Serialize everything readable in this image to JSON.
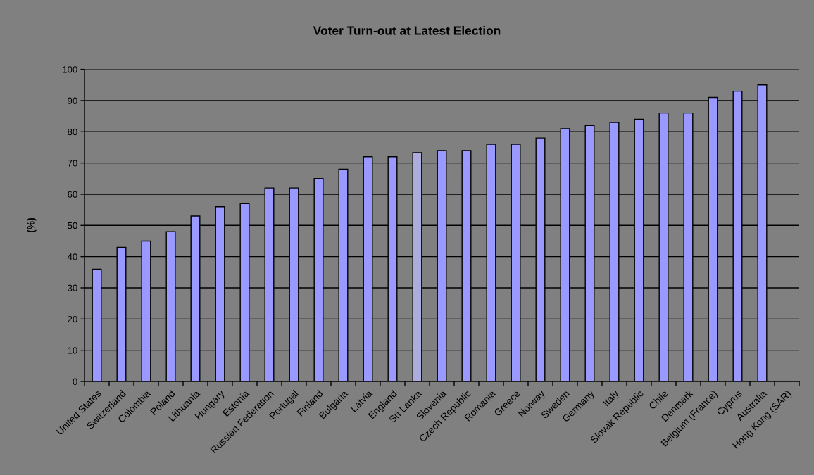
{
  "chart_data": {
    "type": "bar",
    "title": "Voter Turn-out at Latest Election",
    "ylabel": "(%)",
    "categories": [
      "United States",
      "Switzerland",
      "Colombia",
      "Poland",
      "Lithuania",
      "Hungary",
      "Estonia",
      "Russian Federation",
      "Portugal",
      "Finland",
      "Bulgaria",
      "Latvia",
      "England",
      "Sri Lanka",
      "Slovenia",
      "Czech Republic",
      "Romania",
      "Greece",
      "Norway",
      "Sweden",
      "Germany",
      "Italy",
      "Slovak Republic",
      "Chile",
      "Denmark",
      "Belgium (France)",
      "Cyprus",
      "Australia",
      "Hong Kong (SAR)"
    ],
    "values": [
      36,
      43,
      45,
      48,
      53,
      56,
      57,
      62,
      62,
      65,
      68,
      72,
      72,
      73.3,
      74,
      74,
      76,
      76,
      78,
      81,
      82,
      83,
      84,
      86,
      86,
      91,
      93,
      95,
      null
    ],
    "colors": [
      "#9999ff",
      "#9999ff",
      "#9999ff",
      "#9999ff",
      "#9999ff",
      "#9999ff",
      "#9999ff",
      "#9999ff",
      "#9999ff",
      "#9999ff",
      "#9999ff",
      "#9999ff",
      "#9999ff",
      "#acacdf",
      "#9999ff",
      "#9999ff",
      "#9999ff",
      "#9999ff",
      "#9999ff",
      "#9999ff",
      "#9999ff",
      "#9999ff",
      "#9999ff",
      "#9999ff",
      "#9999ff",
      "#9999ff",
      "#9999ff",
      "#9999ff",
      "#9999ff"
    ],
    "ylim": [
      0,
      100
    ],
    "yticks": [
      0,
      10,
      20,
      30,
      40,
      50,
      60,
      70,
      80,
      90,
      100
    ],
    "grid": "y"
  }
}
